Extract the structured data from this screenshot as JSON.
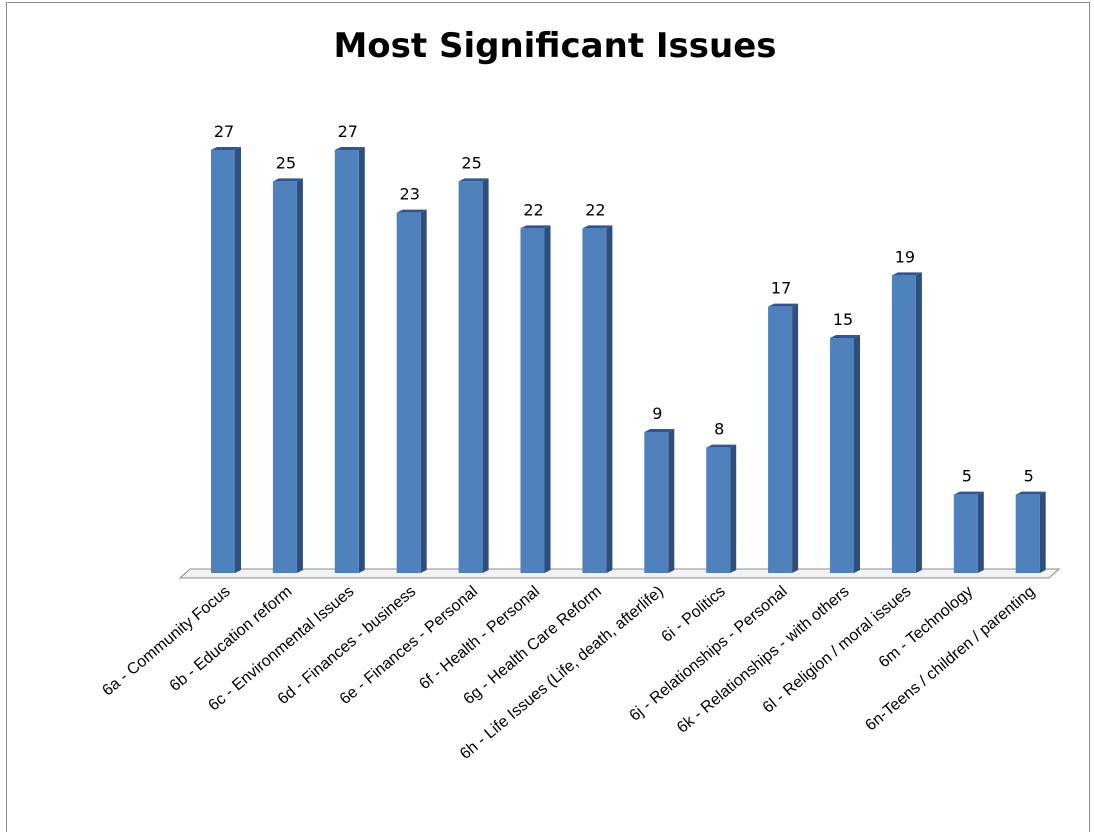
{
  "chart_data": {
    "type": "bar",
    "title": "Most Significant Issues",
    "categories": [
      "6a - Community Focus",
      "6b - Education reform",
      "6c - Environmental Issues",
      "6d - Finances - business",
      "6e - Finances - Personal",
      "6f - Health - Personal",
      "6g - Health Care Reform",
      "6h - Life Issues (Life, death, afterlife)",
      "6i - Politics",
      "6j - Relationships - Personal",
      "6k - Relationships - with others",
      "6l - Religion / moral issues",
      "6m - Technology",
      "6n-Teens / children / parenting"
    ],
    "series": [
      {
        "values": [
          27,
          25,
          27,
          23,
          25,
          22,
          22,
          9,
          8,
          17,
          15,
          19,
          5,
          5
        ]
      }
    ],
    "data_labels": true,
    "ylim": [
      0,
      27
    ],
    "grid": false,
    "legend": "none",
    "bar_color": "#4F81BD",
    "bar_top_color": "#2F5597",
    "bar_side_color": "#2E4F7E"
  }
}
